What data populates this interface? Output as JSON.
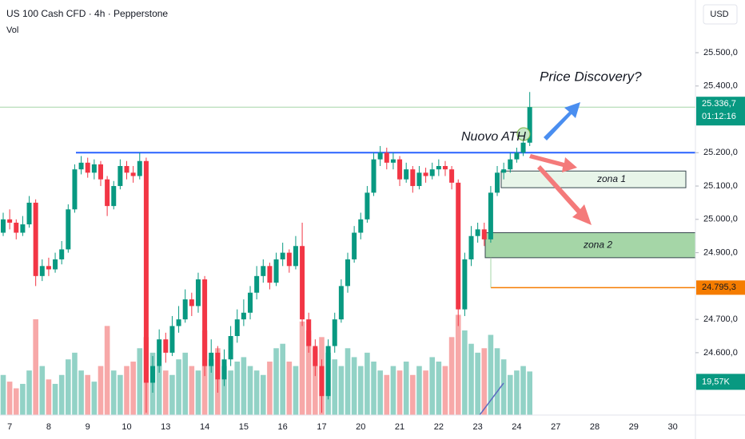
{
  "chart_data": {
    "type": "candlestick",
    "title": "US 100 Cash CFD · 4h · Pepperstone",
    "volume_title": "Vol",
    "currency": "USD",
    "up_color": "#089981",
    "down_color": "#f23645",
    "up_volume_color": "#92d2c6",
    "down_volume_color": "#f7a8a8",
    "ylim": [
      24413,
      25658
    ],
    "yticks": [
      {
        "value": 24600,
        "label": "24.600,0"
      },
      {
        "value": 24700,
        "label": "24.700,0"
      },
      {
        "value": 24900,
        "label": "24.900,0"
      },
      {
        "value": 25000,
        "label": "25.000,0"
      },
      {
        "value": 25100,
        "label": "25.100,0"
      },
      {
        "value": 25200,
        "label": "25.200,0"
      },
      {
        "value": 25400,
        "label": "25.400,0"
      },
      {
        "value": 25500,
        "label": "25.500,0"
      }
    ],
    "grid": false,
    "categories": [
      null,
      "7",
      null,
      null,
      null,
      null,
      null,
      "8",
      null,
      null,
      null,
      null,
      null,
      "9",
      null,
      null,
      null,
      null,
      null,
      "10",
      null,
      null,
      null,
      null,
      null,
      "13",
      null,
      null,
      null,
      null,
      null,
      "14",
      null,
      null,
      null,
      null,
      null,
      "15",
      null,
      null,
      null,
      null,
      null,
      "16",
      null,
      null,
      null,
      null,
      null,
      "17",
      null,
      null,
      null,
      null,
      null,
      "20",
      null,
      null,
      null,
      null,
      null,
      "21",
      null,
      null,
      null,
      null,
      null,
      "22",
      null,
      null,
      null,
      null,
      null,
      "23",
      null,
      null,
      null,
      null,
      null,
      "24",
      null,
      null,
      null,
      null,
      null,
      "27",
      null,
      null,
      null,
      null,
      null,
      "28",
      null,
      null,
      null,
      null,
      null,
      "29",
      null,
      null,
      null,
      null,
      null,
      "30",
      null,
      null,
      null
    ],
    "open": [
      24960,
      25000,
      24990,
      24960,
      24985,
      25050,
      24830,
      24860,
      24850,
      24880,
      24910,
      25030,
      25150,
      25170,
      25140,
      25165,
      25120,
      25040,
      25100,
      25160,
      25140,
      25130,
      25175,
      24510,
      24560,
      24640,
      24600,
      24680,
      24700,
      24760,
      24740,
      24820,
      24560,
      24600,
      24520,
      24580,
      24650,
      24700,
      24720,
      24780,
      24830,
      24860,
      24810,
      24880,
      24900,
      24860,
      24920,
      24700,
      24620,
      24560,
      24470,
      24620,
      24700,
      24800,
      24880,
      24960,
      25000,
      25080,
      25180,
      25200,
      25170,
      25180,
      25120,
      25150,
      25100,
      25140,
      25130,
      25150,
      25160,
      25150,
      25110,
      24730,
      24880,
      24950,
      24970,
      24940,
      25080,
      25140,
      25150,
      25180,
      25200,
      25230,
      null,
      null,
      null,
      null,
      null,
      null,
      null,
      null,
      null,
      null,
      null,
      null,
      null,
      null,
      null,
      null,
      null,
      null,
      null,
      null,
      null,
      null,
      null,
      null,
      null
    ],
    "high": [
      25020,
      25030,
      25000,
      25010,
      25070,
      25060,
      24880,
      24885,
      24900,
      24935,
      25045,
      25165,
      25190,
      25185,
      25180,
      25175,
      25130,
      25115,
      25180,
      25175,
      25160,
      25200,
      25185,
      24590,
      24670,
      24660,
      24710,
      24740,
      24790,
      24780,
      24840,
      24830,
      24640,
      24620,
      24610,
      24680,
      24730,
      24760,
      24800,
      24860,
      24880,
      24870,
      24900,
      24930,
      24910,
      24950,
      24990,
      24720,
      24640,
      24580,
      24640,
      24720,
      24820,
      24900,
      24980,
      25020,
      25100,
      25200,
      25220,
      25215,
      25200,
      25190,
      25170,
      25160,
      25160,
      25155,
      25170,
      25180,
      25175,
      25160,
      25120,
      24900,
      24980,
      24990,
      24990,
      25100,
      25160,
      25170,
      25200,
      25215,
      25250,
      25382,
      null,
      null,
      null,
      null,
      null,
      null,
      null,
      null,
      null,
      null,
      null,
      null,
      null,
      null,
      null,
      null,
      null,
      null,
      null,
      null,
      null,
      null,
      null,
      null,
      null
    ],
    "low": [
      24950,
      24970,
      24940,
      24950,
      24975,
      24800,
      24815,
      24830,
      24840,
      24865,
      24900,
      25020,
      25135,
      25125,
      25120,
      25100,
      25010,
      25030,
      25090,
      25120,
      25110,
      25120,
      24420,
      24480,
      24540,
      24570,
      24590,
      24660,
      24690,
      24710,
      24720,
      24530,
      24540,
      24480,
      24500,
      24560,
      24630,
      24680,
      24700,
      24760,
      24810,
      24790,
      24800,
      24860,
      24840,
      24850,
      24680,
      24600,
      24530,
      24420,
      24460,
      24600,
      24690,
      24780,
      24870,
      24940,
      24990,
      25070,
      25160,
      25150,
      25150,
      25100,
      25110,
      25080,
      25090,
      25110,
      25120,
      25130,
      25130,
      25090,
      24680,
      24710,
      24860,
      24930,
      24920,
      24930,
      25070,
      25120,
      25140,
      25170,
      25190,
      25220,
      null,
      null,
      null,
      null,
      null,
      null,
      null,
      null,
      null,
      null,
      null,
      null,
      null,
      null,
      null,
      null,
      null,
      null,
      null,
      null,
      null,
      null,
      null,
      null,
      null
    ],
    "close": [
      25000,
      24990,
      24960,
      24985,
      25050,
      24830,
      24860,
      24850,
      24880,
      24910,
      25030,
      25150,
      25170,
      25140,
      25165,
      25120,
      25040,
      25100,
      25160,
      25140,
      25130,
      25175,
      24510,
      24560,
      24640,
      24600,
      24680,
      24700,
      24760,
      24740,
      24820,
      24560,
      24600,
      24520,
      24580,
      24650,
      24700,
      24720,
      24780,
      24830,
      24860,
      24810,
      24880,
      24900,
      24860,
      24920,
      24700,
      24620,
      24560,
      24470,
      24620,
      24700,
      24800,
      24880,
      24960,
      25000,
      25080,
      25180,
      25200,
      25170,
      25180,
      25120,
      25150,
      25100,
      25140,
      25130,
      25150,
      25160,
      25150,
      25110,
      24730,
      24880,
      24950,
      24970,
      24940,
      25080,
      25140,
      25150,
      25180,
      25200,
      25230,
      25336.7,
      null,
      null,
      null,
      null,
      null,
      null,
      null,
      null,
      null,
      null,
      null,
      null,
      null,
      null,
      null,
      null,
      null,
      null,
      null,
      null,
      null,
      null,
      null,
      null,
      null
    ],
    "volume": [
      18,
      15,
      12,
      14,
      20,
      43,
      22,
      16,
      14,
      18,
      25,
      28,
      20,
      18,
      15,
      22,
      40,
      20,
      18,
      22,
      24,
      30,
      35,
      28,
      22,
      20,
      18,
      25,
      28,
      22,
      20,
      38,
      25,
      30,
      22,
      20,
      24,
      26,
      22,
      20,
      18,
      24,
      30,
      32,
      24,
      22,
      42,
      38,
      30,
      35,
      28,
      25,
      22,
      30,
      26,
      22,
      28,
      24,
      20,
      18,
      22,
      20,
      24,
      18,
      22,
      20,
      26,
      24,
      22,
      35,
      45,
      38,
      32,
      28,
      30,
      36,
      30,
      25,
      18,
      20,
      22,
      19.57,
      null,
      null,
      null,
      null,
      null,
      null,
      null,
      null,
      null,
      null,
      null,
      null,
      null,
      null,
      null,
      null,
      null,
      null,
      null,
      null,
      null,
      null,
      null,
      null,
      null
    ],
    "last_price": {
      "value": 25336.7,
      "label": "25.336,7"
    },
    "countdown": "01:12:16",
    "volume_label": {
      "value": 19.57,
      "label": "19,57K"
    },
    "horizontal_lines": [
      {
        "value": 25200,
        "color": "#2962ff"
      },
      {
        "value": 24795.3,
        "label": "24.795,3",
        "color": "#f57c00"
      }
    ],
    "zones": [
      {
        "label": "zona 1",
        "top": 25145,
        "bottom": 25095,
        "color": "#e8f5e9"
      },
      {
        "label": "zona 2",
        "top": 24960,
        "bottom": 24885,
        "color": "#a5d6a7"
      }
    ],
    "annotations": [
      "Price Discovery?",
      "Nuovo ATH"
    ]
  }
}
